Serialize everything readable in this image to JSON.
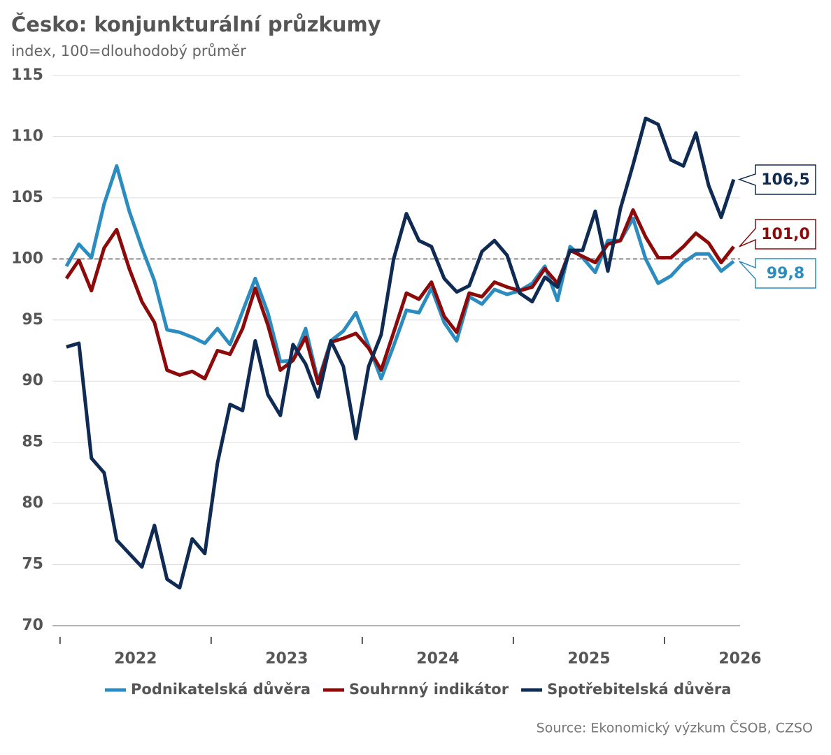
{
  "chart_data": {
    "type": "line",
    "title": "Česko: konjunkturální průzkumy",
    "subtitle": "index, 100=dlouhodobý průměr",
    "source": "Source: Ekonomický výzkum ČSOB, CZSO",
    "x": [
      2022.042,
      2022.125,
      2022.208,
      2022.292,
      2022.375,
      2022.458,
      2022.542,
      2022.625,
      2022.708,
      2022.792,
      2022.875,
      2022.958,
      2023.042,
      2023.125,
      2023.208,
      2023.292,
      2023.375,
      2023.458,
      2023.542,
      2023.625,
      2023.708,
      2023.792,
      2023.875,
      2023.958,
      2024.042,
      2024.125,
      2024.208,
      2024.292,
      2024.375,
      2024.458,
      2024.542,
      2024.625,
      2024.708,
      2024.792,
      2024.875,
      2024.958,
      2025.042,
      2025.125,
      2025.208,
      2025.292,
      2025.375,
      2025.458,
      2025.542,
      2025.625,
      2025.708,
      2025.792,
      2025.875,
      2025.958,
      2026.042,
      2026.125,
      2026.208,
      2026.292,
      2026.375,
      2026.458
    ],
    "xlim": [
      2021.95,
      2026.5
    ],
    "xticks": [
      {
        "value": 2022.5,
        "label": "2022"
      },
      {
        "value": 2023.5,
        "label": "2023"
      },
      {
        "value": 2024.5,
        "label": "2024"
      },
      {
        "value": 2025.5,
        "label": "2025"
      },
      {
        "value": 2026.5,
        "label": "2026"
      }
    ],
    "ylim": [
      70,
      115
    ],
    "yticks": [
      70,
      75,
      80,
      85,
      90,
      95,
      100,
      105,
      110,
      115
    ],
    "grid": true,
    "reference_line": 100,
    "legend": "bottom",
    "series": [
      {
        "name": "Podnikatelská důvěra",
        "color": "#2b8cbf",
        "last_label": "99,8",
        "values": [
          99.4,
          101.2,
          100.1,
          104.5,
          107.6,
          103.9,
          100.9,
          98.2,
          94.2,
          94.0,
          93.6,
          93.1,
          94.3,
          93.0,
          95.7,
          98.4,
          95.6,
          91.6,
          91.7,
          94.3,
          90.0,
          93.3,
          94.1,
          95.6,
          92.9,
          90.2,
          92.9,
          95.8,
          95.6,
          97.6,
          94.8,
          93.3,
          96.9,
          96.3,
          97.5,
          97.1,
          97.4,
          98.0,
          99.4,
          96.6,
          101.0,
          100.1,
          98.9,
          101.5,
          101.5,
          103.3,
          100.0,
          98.0,
          98.6,
          99.7,
          100.4,
          100.4,
          99.0,
          99.8
        ]
      },
      {
        "name": "Souhrnný indikátor",
        "color": "#8c0a0a",
        "last_label": "101,0",
        "values": [
          98.4,
          99.9,
          97.4,
          100.9,
          102.4,
          99.2,
          96.5,
          94.8,
          90.9,
          90.5,
          90.8,
          90.2,
          92.5,
          92.2,
          94.3,
          97.6,
          94.6,
          90.9,
          91.7,
          93.6,
          89.8,
          93.2,
          93.5,
          93.9,
          92.7,
          90.9,
          94.0,
          97.2,
          96.7,
          98.1,
          95.3,
          94.0,
          97.2,
          96.9,
          98.1,
          97.7,
          97.4,
          97.7,
          99.2,
          98.0,
          100.7,
          100.2,
          99.7,
          101.2,
          101.5,
          104.0,
          101.8,
          100.1,
          100.1,
          101.0,
          102.1,
          101.3,
          99.7,
          101.0
        ]
      },
      {
        "name": "Spotřebitelská důvěra",
        "color": "#0f2b54",
        "last_label": "106,5",
        "values": [
          92.8,
          93.1,
          83.7,
          82.5,
          77.0,
          75.9,
          74.8,
          78.2,
          73.8,
          73.1,
          77.1,
          75.9,
          83.3,
          88.1,
          87.6,
          93.3,
          88.9,
          87.2,
          93.0,
          91.4,
          88.7,
          93.3,
          91.2,
          85.3,
          91.2,
          93.8,
          100.0,
          103.7,
          101.5,
          101.0,
          98.4,
          97.3,
          97.8,
          100.6,
          101.5,
          100.3,
          97.2,
          96.5,
          98.5,
          97.7,
          100.7,
          100.7,
          103.9,
          99.0,
          104.1,
          107.7,
          111.5,
          111.0,
          108.1,
          107.6,
          110.3,
          106.0,
          103.4,
          106.5
        ]
      }
    ]
  }
}
